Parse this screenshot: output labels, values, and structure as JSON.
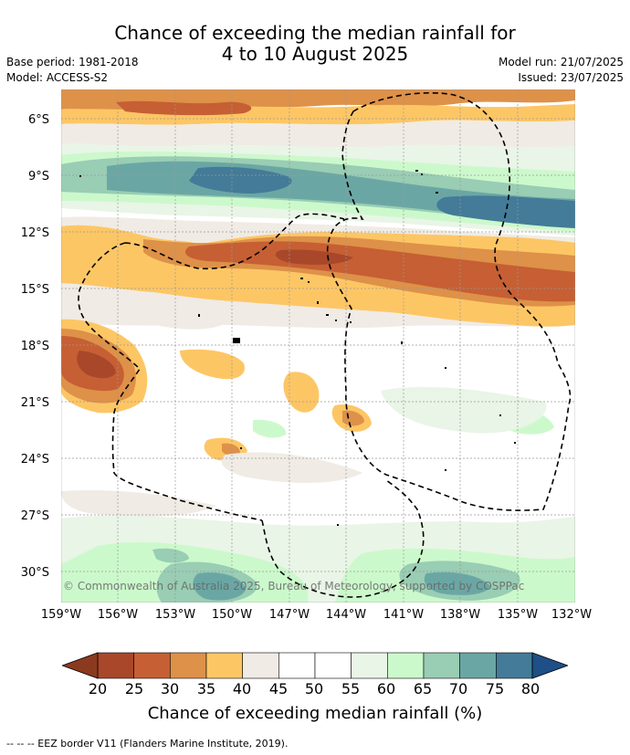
{
  "title": {
    "line1": "Chance of exceeding the median rainfall for",
    "line2": "4 to 10 August 2025"
  },
  "meta": {
    "base_period": "Base period: 1981-2018",
    "model": "Model: ACCESS-S2",
    "model_run": "Model run: 21/07/2025",
    "issued": "Issued: 23/07/2025"
  },
  "map": {
    "lon_labels": [
      "159°W",
      "156°W",
      "153°W",
      "150°W",
      "147°W",
      "144°W",
      "141°W",
      "138°W",
      "135°W",
      "132°W"
    ],
    "lat_labels": [
      "6°S",
      "9°S",
      "12°S",
      "15°S",
      "18°S",
      "21°S",
      "24°S",
      "27°S",
      "30°S"
    ],
    "copyright": "© Commonwealth of Australia 2025, Bureau of Meteorology, supported by COSPPac",
    "colors": {
      "c20": "#a9472a",
      "c25": "#c65f33",
      "c30": "#de9148",
      "c35": "#fdc665",
      "c40": "#f0ebe4",
      "c45": "#ffffff",
      "c50": "#ffffff",
      "c55": "#e9f5e6",
      "c60": "#ccf9cc",
      "c65": "#99cdb4",
      "c70": "#6aa7a4",
      "c75": "#437b98"
    }
  },
  "colorbar": {
    "labels": [
      "20",
      "25",
      "30",
      "35",
      "40",
      "45",
      "50",
      "55",
      "60",
      "65",
      "70",
      "75",
      "80"
    ],
    "title": "Chance of exceeding median rainfall (%)",
    "colors": [
      "#a9472a",
      "#c65f33",
      "#de9148",
      "#fdc665",
      "#f0ebe4",
      "#ffffff",
      "#ffffff",
      "#e9f5e6",
      "#ccf9cc",
      "#99cdb4",
      "#6aa7a4",
      "#437b98"
    ],
    "low_extend_color": "#8b3a1f",
    "high_extend_color": "#1e4f86"
  },
  "footer": "--  --  -- EEZ border V11 (Flanders Marine Institute, 2019)."
}
